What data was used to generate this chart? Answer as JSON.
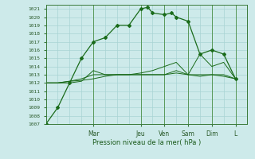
{
  "xlabel": "Pression niveau de la mer( hPa )",
  "background_color": "#cdeaea",
  "grid_color": "#a8d4d4",
  "line_color": "#1a6b1a",
  "ylim": [
    1007,
    1021.5
  ],
  "yticks": [
    1007,
    1008,
    1009,
    1010,
    1011,
    1012,
    1013,
    1014,
    1015,
    1016,
    1017,
    1018,
    1019,
    1020,
    1021
  ],
  "day_labels": [
    "Mar",
    "Jeu",
    "Ven",
    "Sam",
    "Dim",
    "L"
  ],
  "day_positions": [
    2,
    4,
    5,
    6,
    7,
    8
  ],
  "xlim": [
    0,
    8.5
  ],
  "series1_x": [
    0,
    0.5,
    1.0,
    1.5,
    2.0,
    2.5,
    3.0,
    3.5,
    4.0,
    4.3,
    4.5,
    5.0,
    5.3,
    5.5,
    6.0,
    6.5,
    7.0,
    7.5,
    8.0
  ],
  "series1_y": [
    1007,
    1009,
    1012,
    1015,
    1017,
    1017.5,
    1019,
    1019,
    1021,
    1021.2,
    1020.5,
    1020.3,
    1020.5,
    1020,
    1019.5,
    1015.5,
    1016,
    1015.5,
    1012.5
  ],
  "series2_x": [
    0,
    0.5,
    1.0,
    1.5,
    2.0,
    2.5,
    3.0,
    3.5,
    4.0,
    4.5,
    5.0,
    5.5,
    6.0,
    6.5,
    7.0,
    7.5,
    8.0
  ],
  "series2_y": [
    1012,
    1012,
    1012,
    1012.2,
    1013.5,
    1013,
    1013,
    1013,
    1013,
    1013,
    1013,
    1013.5,
    1013,
    1012.8,
    1013,
    1012.8,
    1012.5
  ],
  "series3_x": [
    0,
    0.5,
    1.0,
    1.5,
    2.0,
    2.5,
    3.0,
    3.5,
    4.0,
    4.5,
    5.0,
    5.5,
    6.0,
    6.5,
    7.0,
    7.5,
    8.0
  ],
  "series3_y": [
    1012,
    1012,
    1012.2,
    1012.5,
    1013,
    1013,
    1013,
    1013,
    1013.2,
    1013.5,
    1014,
    1014.5,
    1013,
    1015.5,
    1014,
    1014.5,
    1012.5
  ],
  "series4_x": [
    0,
    0.5,
    1.0,
    1.5,
    2.0,
    2.5,
    3.0,
    3.5,
    4.0,
    4.5,
    5.0,
    5.5,
    6.0,
    6.5,
    7.0,
    7.5,
    8.0
  ],
  "series4_y": [
    1012,
    1012,
    1012.2,
    1012.3,
    1012.5,
    1012.8,
    1013,
    1013,
    1013,
    1013,
    1013,
    1013.2,
    1013,
    1013,
    1013,
    1013,
    1012.5
  ]
}
